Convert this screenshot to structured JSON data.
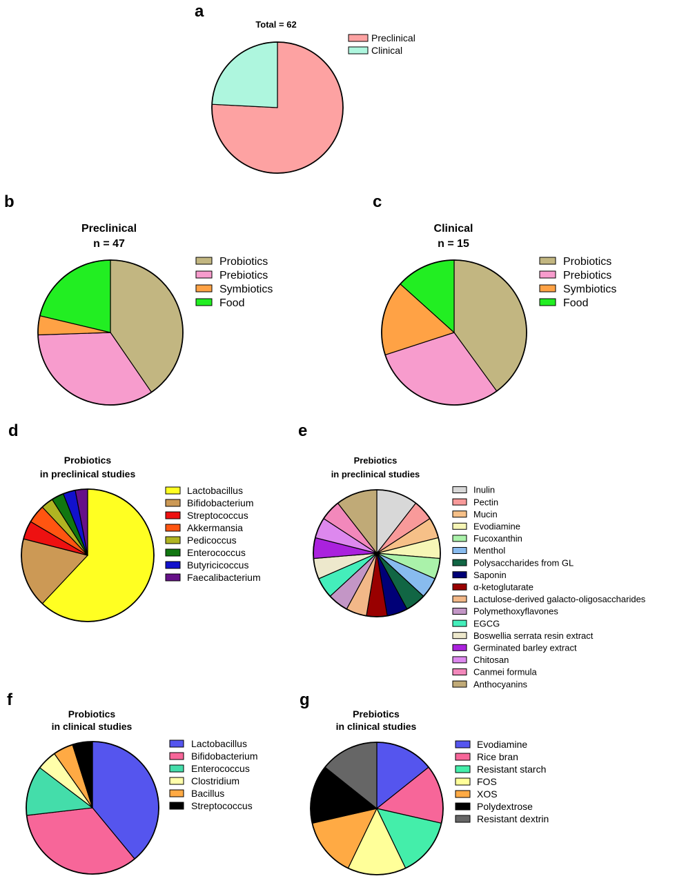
{
  "chart_data": [
    {
      "id": "a",
      "panel_label": "a",
      "type": "pie",
      "title": "Total = 62",
      "subtitle": "",
      "categories": [
        "Preclinical",
        "Clinical"
      ],
      "values": [
        47,
        15
      ],
      "colors": [
        "#fda2a2",
        "#aef6de"
      ],
      "legend": "right"
    },
    {
      "id": "b",
      "panel_label": "b",
      "type": "pie",
      "title": "Preclinical",
      "subtitle": "n = 47",
      "categories": [
        "Probiotics",
        "Prebiotics",
        "Symbiotics",
        "Food"
      ],
      "values": [
        19,
        16,
        2,
        10
      ],
      "colors": [
        "#c2b681",
        "#f79ccd",
        "#ffa245",
        "#22ee22"
      ],
      "legend": "right"
    },
    {
      "id": "c",
      "panel_label": "c",
      "type": "pie",
      "title": "Clinical",
      "subtitle": "n = 15",
      "categories": [
        "Probiotics",
        "Prebiotics",
        "Symbiotics",
        "Food"
      ],
      "values": [
        6,
        4.5,
        2.5,
        2
      ],
      "colors": [
        "#c2b681",
        "#f79ccd",
        "#ffa245",
        "#22ee22"
      ],
      "legend": "right"
    },
    {
      "id": "d",
      "panel_label": "d",
      "type": "pie",
      "title": "Probiotics",
      "subtitle": "in preclinical studies",
      "categories": [
        "Lactobacillus",
        "Bifidobacterium",
        "Streptococcus",
        "Akkermansia",
        "Pedicoccus",
        "Enterococcus",
        "Butyricicoccus",
        "Faecalibacterium"
      ],
      "values": [
        62,
        17,
        4.5,
        4.5,
        3,
        3,
        3,
        3
      ],
      "colors": [
        "#ffff22",
        "#cc9955",
        "#ee1111",
        "#ff5511",
        "#b0b422",
        "#117711",
        "#1111cc",
        "#661188"
      ],
      "legend": "right"
    },
    {
      "id": "e",
      "panel_label": "e",
      "type": "pie",
      "title": "Prebiotics",
      "subtitle": "in preclinical studies",
      "categories": [
        "Inulin",
        "Pectin",
        "Mucin",
        "Evodiamine",
        "Fucoxanthin",
        "Menthol",
        "Polysaccharides from GL",
        "Saponin",
        "α-ketoglutarate",
        "Lactulose-derived galacto-oligosaccharides",
        "Polymethoxyflavones",
        "EGCG",
        "Boswellia serrata resin extract",
        "Germinated barley extract",
        "Chitosan",
        "Canmei formula",
        "Anthocyanins"
      ],
      "values": [
        2,
        1,
        1,
        1,
        1,
        1,
        1,
        1,
        1,
        1,
        1,
        1,
        1,
        1,
        1,
        1,
        2
      ],
      "colors": [
        "#d8d8d8",
        "#f89a9a",
        "#f6c088",
        "#f6f6b6",
        "#aaf2aa",
        "#88bbee",
        "#116644",
        "#000077",
        "#990000",
        "#f2b888",
        "#c396c6",
        "#44eebb",
        "#ede8cc",
        "#aa22dd",
        "#dd88ee",
        "#f288bb",
        "#c0aa77"
      ],
      "legend": "right"
    },
    {
      "id": "f",
      "panel_label": "f",
      "type": "pie",
      "title": "Probiotics",
      "subtitle": "in clinical studies",
      "categories": [
        "Lactobacillus",
        "Bifidobacterium",
        "Enterococcus",
        "Clostridium",
        "Bacillus",
        "Streptococcus"
      ],
      "values": [
        8,
        7,
        2.5,
        1,
        1,
        1
      ],
      "colors": [
        "#5555ee",
        "#f76699",
        "#44ddaa",
        "#ffffaa",
        "#ffaa44",
        "#000000"
      ],
      "legend": "right"
    },
    {
      "id": "g",
      "panel_label": "g",
      "type": "pie",
      "title": "Prebiotics",
      "subtitle": "in clinical studies",
      "categories": [
        "Evodiamine",
        "Rice bran",
        "Resistant starch",
        "FOS",
        "XOS",
        "Polydextrose",
        "Resistant dextrin"
      ],
      "values": [
        1,
        1,
        1,
        1,
        1,
        1,
        1
      ],
      "colors": [
        "#5555ee",
        "#f76699",
        "#44eeaa",
        "#ffff99",
        "#ffaa44",
        "#000000",
        "#666666"
      ],
      "legend": "right"
    }
  ]
}
